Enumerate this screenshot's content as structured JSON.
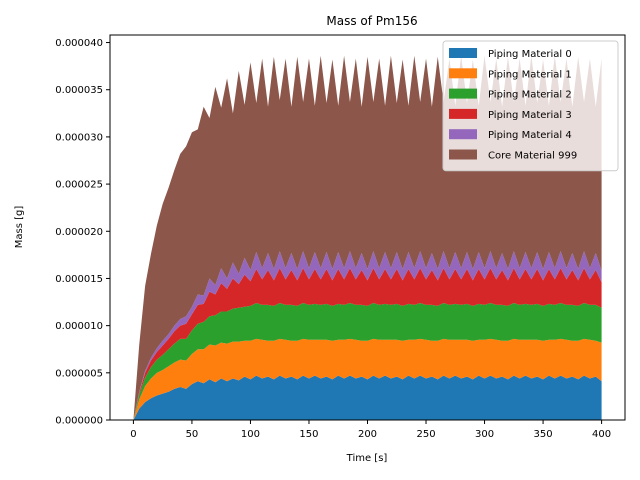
{
  "chart_data": {
    "type": "area",
    "stacked": true,
    "title": "Mass of Pm156",
    "xlabel": "Time [s]",
    "ylabel": "Mass [g]",
    "xlim": [
      -20,
      420
    ],
    "ylim": [
      0,
      4.08e-05
    ],
    "xticks": [
      0,
      50,
      100,
      150,
      200,
      250,
      300,
      350,
      400
    ],
    "yticks": [
      0,
      5e-06,
      1e-05,
      1.5e-05,
      2e-05,
      2.5e-05,
      3e-05,
      3.5e-05,
      4e-05
    ],
    "ytick_labels": [
      "0.000000",
      "0.000005",
      "0.000010",
      "0.000015",
      "0.000020",
      "0.000025",
      "0.000030",
      "0.000035",
      "0.000040"
    ],
    "grid": false,
    "legend_position": "top-right",
    "x": [
      0,
      5,
      10,
      15,
      20,
      25,
      30,
      35,
      40,
      45,
      50,
      55,
      60,
      65,
      70,
      75,
      80,
      85,
      90,
      95,
      100,
      105,
      110,
      115,
      120,
      125,
      130,
      135,
      140,
      145,
      150,
      155,
      160,
      165,
      170,
      175,
      180,
      185,
      190,
      195,
      200,
      205,
      210,
      215,
      220,
      225,
      230,
      235,
      240,
      245,
      250,
      255,
      260,
      265,
      270,
      275,
      280,
      285,
      290,
      295,
      300,
      305,
      310,
      315,
      320,
      325,
      330,
      335,
      340,
      345,
      350,
      355,
      360,
      365,
      370,
      375,
      380,
      385,
      390,
      395,
      400
    ],
    "series": [
      {
        "name": "Piping Material 0",
        "color": "#1f77b4",
        "values": [
          0,
          1.2e-06,
          1.9e-06,
          2.3e-06,
          2.6e-06,
          2.8e-06,
          3e-06,
          3.3e-06,
          3.5e-06,
          3.3e-06,
          3.8e-06,
          4.1e-06,
          3.9e-06,
          4.3e-06,
          4e-06,
          4.4e-06,
          4.1e-06,
          4.4e-06,
          4.2e-06,
          4.6e-06,
          4.3e-06,
          4.7e-06,
          4.4e-06,
          4.6e-06,
          4.3e-06,
          4.7e-06,
          4.4e-06,
          4.6e-06,
          4.3e-06,
          4.7e-06,
          4.4e-06,
          4.7e-06,
          4.4e-06,
          4.6e-06,
          4.3e-06,
          4.7e-06,
          4.4e-06,
          4.7e-06,
          4.4e-06,
          4.6e-06,
          4.3e-06,
          4.7e-06,
          4.4e-06,
          4.7e-06,
          4.4e-06,
          4.6e-06,
          4.3e-06,
          4.7e-06,
          4.4e-06,
          4.7e-06,
          4.4e-06,
          4.6e-06,
          4.3e-06,
          4.7e-06,
          4.4e-06,
          4.7e-06,
          4.4e-06,
          4.6e-06,
          4.3e-06,
          4.7e-06,
          4.4e-06,
          4.7e-06,
          4.4e-06,
          4.6e-06,
          4.3e-06,
          4.7e-06,
          4.4e-06,
          4.7e-06,
          4.4e-06,
          4.6e-06,
          4.3e-06,
          4.7e-06,
          4.4e-06,
          4.7e-06,
          4.4e-06,
          4.6e-06,
          4.3e-06,
          4.7e-06,
          4.4e-06,
          4.6e-06,
          4.1e-06
        ]
      },
      {
        "name": "Piping Material 1",
        "color": "#ff7f0e",
        "values": [
          0,
          1e-06,
          1.7e-06,
          2.1e-06,
          2.4e-06,
          2.5e-06,
          2.7e-06,
          2.8e-06,
          2.9e-06,
          3e-06,
          3.2e-06,
          3.4e-06,
          3.6e-06,
          3.7e-06,
          3.9e-06,
          3.8e-06,
          4e-06,
          3.9e-06,
          4.1e-06,
          3.8e-06,
          4.1e-06,
          3.9e-06,
          4.1e-06,
          3.8e-06,
          4.1e-06,
          3.9e-06,
          4.1e-06,
          3.8e-06,
          4.1e-06,
          3.9e-06,
          4.1e-06,
          3.8e-06,
          4.1e-06,
          3.9e-06,
          4.1e-06,
          3.8e-06,
          4.1e-06,
          3.9e-06,
          4.1e-06,
          3.8e-06,
          4.1e-06,
          3.9e-06,
          4.1e-06,
          3.8e-06,
          4.1e-06,
          3.9e-06,
          4.1e-06,
          3.8e-06,
          4.1e-06,
          3.9e-06,
          4.1e-06,
          3.8e-06,
          4.1e-06,
          3.9e-06,
          4.1e-06,
          3.8e-06,
          4.1e-06,
          3.9e-06,
          4.1e-06,
          3.8e-06,
          4.1e-06,
          3.9e-06,
          4.1e-06,
          3.8e-06,
          4.1e-06,
          3.9e-06,
          4.1e-06,
          3.8e-06,
          4.1e-06,
          3.9e-06,
          4.1e-06,
          3.8e-06,
          4.1e-06,
          3.9e-06,
          4.1e-06,
          3.8e-06,
          4.1e-06,
          3.9e-06,
          4.1e-06,
          3.8e-06,
          4.1e-06
        ]
      },
      {
        "name": "Piping Material 2",
        "color": "#2ca02c",
        "values": [
          0,
          5e-07,
          9e-07,
          1.2e-06,
          1.4e-06,
          1.6e-06,
          1.8e-06,
          2e-06,
          2.2e-06,
          2.3e-06,
          2.5e-06,
          2.7e-06,
          2.9e-06,
          3e-06,
          3.2e-06,
          3.3e-06,
          3.4e-06,
          3.5e-06,
          3.6e-06,
          3.6e-06,
          3.7e-06,
          3.8e-06,
          3.7e-06,
          3.8e-06,
          3.7e-06,
          3.8e-06,
          3.7e-06,
          3.8e-06,
          3.7e-06,
          3.8e-06,
          3.7e-06,
          3.8e-06,
          3.7e-06,
          3.8e-06,
          3.7e-06,
          3.8e-06,
          3.7e-06,
          3.8e-06,
          3.7e-06,
          3.8e-06,
          3.7e-06,
          3.8e-06,
          3.7e-06,
          3.8e-06,
          3.7e-06,
          3.8e-06,
          3.7e-06,
          3.8e-06,
          3.7e-06,
          3.8e-06,
          3.7e-06,
          3.8e-06,
          3.7e-06,
          3.8e-06,
          3.7e-06,
          3.8e-06,
          3.7e-06,
          3.8e-06,
          3.7e-06,
          3.8e-06,
          3.7e-06,
          3.8e-06,
          3.7e-06,
          3.8e-06,
          3.7e-06,
          3.8e-06,
          3.7e-06,
          3.8e-06,
          3.7e-06,
          3.8e-06,
          3.7e-06,
          3.8e-06,
          3.7e-06,
          3.8e-06,
          3.7e-06,
          3.8e-06,
          3.7e-06,
          3.8e-06,
          3.7e-06,
          3.8e-06,
          3.7e-06
        ]
      },
      {
        "name": "Piping Material 3",
        "color": "#d62728",
        "values": [
          0,
          2e-07,
          5e-07,
          7e-07,
          8e-07,
          1e-06,
          1.1e-06,
          1.3e-06,
          1.4e-06,
          1.6e-06,
          1.7e-06,
          2e-06,
          1.9e-06,
          2.6e-06,
          2.2e-06,
          3e-06,
          2.4e-06,
          3.2e-06,
          2.5e-06,
          3.4e-06,
          2.6e-06,
          3.6e-06,
          2.7e-06,
          3.7e-06,
          2.7e-06,
          3.7e-06,
          2.7e-06,
          3.7e-06,
          2.7e-06,
          3.7e-06,
          2.7e-06,
          3.7e-06,
          2.7e-06,
          3.7e-06,
          2.7e-06,
          3.7e-06,
          2.7e-06,
          3.7e-06,
          2.7e-06,
          3.7e-06,
          2.7e-06,
          3.7e-06,
          2.7e-06,
          3.7e-06,
          2.7e-06,
          3.7e-06,
          2.7e-06,
          3.7e-06,
          2.7e-06,
          3.7e-06,
          2.7e-06,
          3.7e-06,
          2.7e-06,
          3.7e-06,
          2.7e-06,
          3.7e-06,
          2.7e-06,
          3.7e-06,
          2.7e-06,
          3.7e-06,
          2.7e-06,
          3.7e-06,
          2.7e-06,
          3.7e-06,
          2.7e-06,
          3.7e-06,
          2.7e-06,
          3.7e-06,
          2.7e-06,
          3.7e-06,
          2.7e-06,
          3.7e-06,
          2.7e-06,
          3.7e-06,
          2.7e-06,
          3.7e-06,
          2.7e-06,
          3.7e-06,
          2.7e-06,
          3.7e-06,
          2.7e-06
        ]
      },
      {
        "name": "Piping Material 4",
        "color": "#9467bd",
        "values": [
          0,
          1e-07,
          2e-07,
          3e-07,
          4e-07,
          5e-07,
          5e-07,
          6e-07,
          7e-07,
          8e-07,
          8e-07,
          1.1e-06,
          9e-07,
          1.4e-06,
          1e-06,
          1.6e-06,
          1.1e-06,
          1.7e-06,
          1.1e-06,
          1.8e-06,
          1.2e-06,
          1.8e-06,
          1.2e-06,
          1.8e-06,
          1.2e-06,
          1.8e-06,
          1.2e-06,
          1.8e-06,
          1.2e-06,
          1.8e-06,
          1.2e-06,
          1.8e-06,
          1.2e-06,
          1.8e-06,
          1.2e-06,
          1.8e-06,
          1.2e-06,
          1.8e-06,
          1.2e-06,
          1.8e-06,
          1.2e-06,
          1.8e-06,
          1.2e-06,
          1.8e-06,
          1.2e-06,
          1.8e-06,
          1.2e-06,
          1.8e-06,
          1.2e-06,
          1.8e-06,
          1.2e-06,
          1.8e-06,
          1.2e-06,
          1.8e-06,
          1.2e-06,
          1.8e-06,
          1.2e-06,
          1.8e-06,
          1.2e-06,
          1.8e-06,
          1.2e-06,
          1.8e-06,
          1.2e-06,
          1.8e-06,
          1.2e-06,
          1.8e-06,
          1.2e-06,
          1.8e-06,
          1.2e-06,
          1.8e-06,
          1.2e-06,
          1.8e-06,
          1.2e-06,
          1.8e-06,
          1.2e-06,
          1.8e-06,
          1.2e-06,
          1.8e-06,
          1.2e-06,
          1.8e-06,
          1.2e-06
        ]
      },
      {
        "name": "Core Material 999",
        "color": "#8c564b",
        "values": [
          0,
          5e-06,
          9e-06,
          1.1e-05,
          1.3e-05,
          1.45e-05,
          1.55e-05,
          1.65e-05,
          1.75e-05,
          1.8e-05,
          1.85e-05,
          1.75e-05,
          2e-05,
          1.7e-05,
          2.1e-05,
          1.7e-05,
          2.12e-05,
          1.58e-05,
          2.15e-05,
          1.62e-05,
          2.2e-05,
          1.58e-05,
          2.22e-05,
          1.55e-05,
          2.25e-05,
          1.6e-05,
          2.22e-05,
          1.55e-05,
          2.25e-05,
          1.58e-05,
          2.22e-05,
          1.55e-05,
          2.25e-05,
          1.58e-05,
          2.22e-05,
          1.55e-05,
          2.25e-05,
          1.58e-05,
          2.22e-05,
          1.55e-05,
          2.25e-05,
          1.58e-05,
          2.22e-05,
          1.55e-05,
          2.25e-05,
          1.58e-05,
          2.22e-05,
          1.55e-05,
          2.25e-05,
          1.58e-05,
          2.22e-05,
          1.55e-05,
          2.25e-05,
          1.58e-05,
          2.22e-05,
          1.55e-05,
          2.25e-05,
          1.58e-05,
          2.22e-05,
          1.55e-05,
          2.25e-05,
          1.58e-05,
          2.22e-05,
          1.55e-05,
          2.25e-05,
          1.58e-05,
          2.22e-05,
          1.55e-05,
          2.25e-05,
          1.58e-05,
          2.22e-05,
          1.55e-05,
          2.25e-05,
          1.58e-05,
          2.22e-05,
          1.55e-05,
          2.25e-05,
          1.58e-05,
          2.22e-05,
          1.55e-05,
          2.25e-05
        ]
      }
    ]
  }
}
